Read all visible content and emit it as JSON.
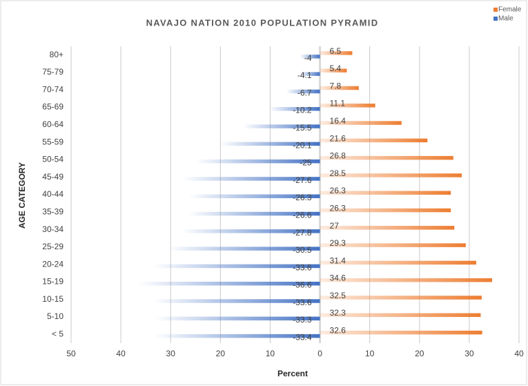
{
  "chart_data": {
    "type": "pyramid",
    "title": "NAVAJO NATION 2010 POPULATION PYRAMID",
    "x_label": "Percent",
    "y_label": "AGE CATEGORY",
    "categories": [
      "< 5",
      "5-10",
      "10-15",
      "15-19",
      "20-24",
      "25-29",
      "30-34",
      "35-39",
      "40-44",
      "45-49",
      "50-54",
      "55-59",
      "60-64",
      "65-69",
      "70-74",
      "75-79",
      "80+"
    ],
    "series": [
      {
        "name": "Male",
        "color": "#4472c4",
        "values": [
          -33.4,
          -33.3,
          -33.6,
          -36.6,
          -33.6,
          -30.5,
          -27.8,
          -26.6,
          -26.3,
          -27.6,
          -25,
          -20.1,
          -15.5,
          -10.2,
          -6.7,
          -4.1,
          -4
        ]
      },
      {
        "name": "Female",
        "color": "#ed7d31",
        "values": [
          32.6,
          32.3,
          32.5,
          34.6,
          31.4,
          29.3,
          27,
          26.3,
          26.3,
          28.5,
          26.8,
          21.6,
          16.4,
          11.1,
          7.8,
          5.4,
          6.5
        ]
      }
    ],
    "xlim": [
      -50,
      40
    ],
    "xticks": [
      {
        "value": -50,
        "label": "50"
      },
      {
        "value": -40,
        "label": "40"
      },
      {
        "value": -30,
        "label": "30"
      },
      {
        "value": -20,
        "label": "20"
      },
      {
        "value": -10,
        "label": "10"
      },
      0,
      10,
      20,
      30,
      40
    ],
    "grid": true,
    "legend": "top-right"
  }
}
